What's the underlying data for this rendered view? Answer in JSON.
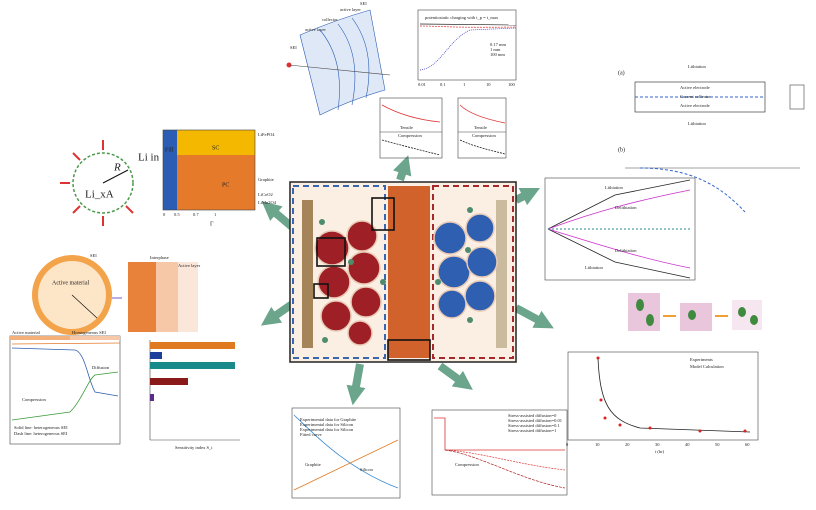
{
  "particle": {
    "lithium_in": "Li in",
    "radius": "R",
    "core": "Li_xA"
  },
  "phase_map": {
    "regions": [
      "Fill",
      "SC",
      "PC"
    ],
    "right_labels": [
      "LiFePO4",
      "Graphite",
      "LiCoO2",
      "LiMn2O4"
    ],
    "x_ticks": [
      "0",
      "0.5",
      "0.7",
      "1"
    ],
    "x_label": "Γ"
  },
  "active_particle": {
    "material": "Active material",
    "sei": "SEI"
  },
  "interface": {
    "labels": [
      "Interphase",
      "Active layer"
    ]
  },
  "sei_chart": {
    "headers": [
      "Active material",
      "Homogeneous SEI"
    ],
    "labels": [
      "Diffusion",
      "Compression"
    ],
    "legend": [
      "Solid line: heterogeneous SEI",
      "Dash line: heterogeneous SEI"
    ]
  },
  "bar_chart": {
    "x_label": "Sensitivity index S_i"
  },
  "arc": {
    "labels": [
      "SEI",
      "active layer",
      "collector",
      "active layer",
      "SEI"
    ]
  },
  "top_chart": {
    "title": "potentiostatic charging with t_p = t_max",
    "legend": [
      "0.17 mm",
      "1 mm",
      "100 mm"
    ],
    "x_ticks": [
      "0.01",
      "0.1",
      "1",
      "10",
      "100"
    ]
  },
  "twin_charts": {
    "labels": [
      "Tensile",
      "Compression",
      "Tensile",
      "Compression"
    ]
  },
  "beams": {
    "a": "(a)",
    "b": "(b)",
    "top": "Lithiation",
    "layers": [
      "Active electrode",
      "Current collector",
      "Active electrode"
    ],
    "bottom": "Lithiation"
  },
  "strain_chart": {
    "labels": [
      "Lithiation",
      "Delithiation",
      "Delithiation",
      "Lithiation"
    ]
  },
  "scatter": {
    "legend": [
      "Experiments",
      "Model Calculation"
    ],
    "x_label": "t (hr)",
    "x_ticks": [
      "0",
      "10",
      "20",
      "30",
      "40",
      "50",
      "60"
    ]
  },
  "stress_chart": {
    "legend": [
      "Experimental data for Graphite",
      "Experimental data for Silicon",
      "Experimental data for Silicon",
      "Fitted curve"
    ],
    "labels": [
      "Graphite",
      "Silicon"
    ]
  },
  "compression_chart": {
    "label": "Compression",
    "legend": [
      "Stress-assisted diffusion=0",
      "Stress-assisted diffusion=0.01",
      "Stress-assisted diffusion=0.1",
      "Stress-assisted diffusion=1"
    ]
  }
}
